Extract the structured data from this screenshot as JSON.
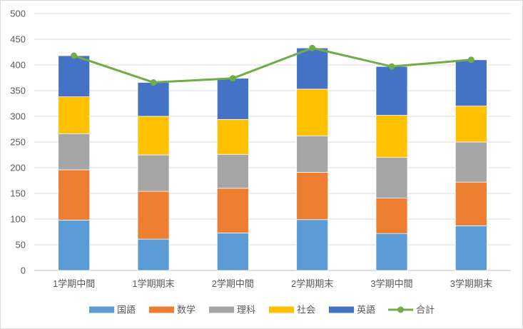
{
  "chart_data": {
    "type": "bar",
    "stacked": true,
    "title": "",
    "xlabel": "",
    "ylabel": "",
    "ylim": [
      0,
      500
    ],
    "ytick_step": 50,
    "grid": true,
    "legend_position": "bottom",
    "categories": [
      "1学期中間",
      "1学期期末",
      "2学期中間",
      "2学期期末",
      "3学期中間",
      "3学期期末"
    ],
    "series": [
      {
        "name": "国語",
        "color": "#5B9BD5",
        "values": [
          98,
          61,
          73,
          99,
          72,
          87
        ]
      },
      {
        "name": "数学",
        "color": "#ED7D31",
        "values": [
          98,
          93,
          87,
          92,
          69,
          85
        ]
      },
      {
        "name": "理科",
        "color": "#A5A5A5",
        "values": [
          70,
          71,
          66,
          71,
          79,
          78
        ]
      },
      {
        "name": "社会",
        "color": "#FFC000",
        "values": [
          72,
          75,
          68,
          91,
          82,
          70
        ]
      },
      {
        "name": "英語",
        "color": "#4472C4",
        "values": [
          80,
          66,
          80,
          80,
          95,
          90
        ]
      }
    ],
    "line": {
      "name": "合計",
      "color": "#70AD47",
      "values": [
        418,
        366,
        374,
        433,
        397,
        410
      ]
    }
  }
}
